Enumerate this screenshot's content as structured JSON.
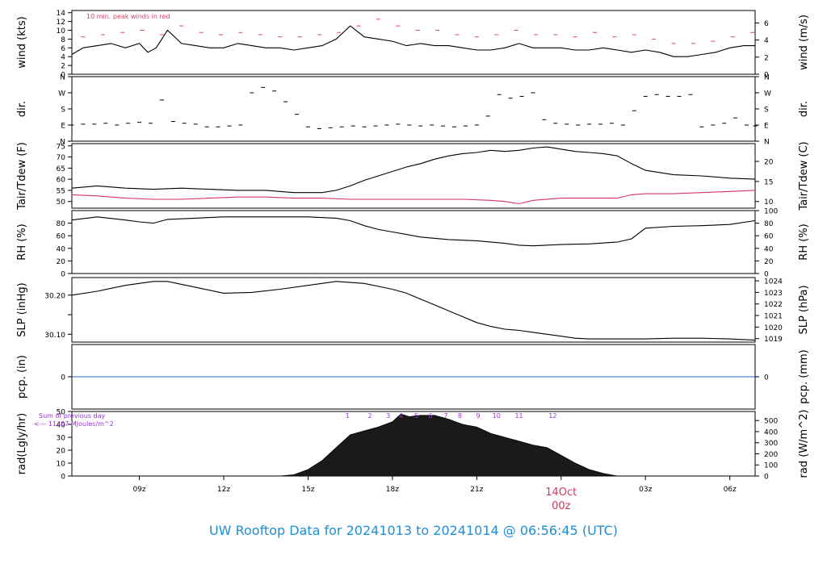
{
  "title": "UW Rooftop Data for 20241013  to  20241014 @ 06:56:45  (UTC)",
  "colors": {
    "line": "#000000",
    "peak": "#e0406a",
    "dewpoint": "#d6336c",
    "precip": "#2f5fd0",
    "annotation": "#9b30d9",
    "date_label": "#d0395e",
    "title": "#1e8fd6"
  },
  "x_axis": {
    "range_hours": [
      6.6,
      30.9
    ],
    "ticks": [
      {
        "h": 9,
        "label": "09z"
      },
      {
        "h": 12,
        "label": "12z"
      },
      {
        "h": 15,
        "label": "15z"
      },
      {
        "h": 18,
        "label": "18z"
      },
      {
        "h": 21,
        "label": "21z"
      },
      {
        "h": 24,
        "label": ""
      },
      {
        "h": 27,
        "label": "03z"
      },
      {
        "h": 30,
        "label": "06z"
      }
    ],
    "date_marker": {
      "h": 24,
      "date": "14Oct",
      "time": "00z"
    }
  },
  "chart_data": [
    {
      "id": "wind",
      "type": "line",
      "ylabel_left": "wind (kts)",
      "ylabel_right": "wind (m/s)",
      "ylim": [
        0,
        14.5
      ],
      "left_ticks": [
        0,
        2,
        4,
        6,
        8,
        10,
        12,
        14
      ],
      "right_ticks": [
        {
          "v": 0,
          "label": "0"
        },
        {
          "v": 3.888,
          "label": "2"
        },
        {
          "v": 7.775,
          "label": "4"
        },
        {
          "v": 11.663,
          "label": "6"
        }
      ],
      "annotation": "10 min. peak winds in red",
      "series": [
        {
          "role": "speed",
          "kind": "line",
          "x": [
            6.6,
            7.0,
            7.5,
            8.0,
            8.5,
            9.0,
            9.3,
            9.6,
            10.0,
            10.5,
            11.0,
            11.5,
            12.0,
            12.5,
            13.0,
            13.5,
            14.0,
            14.5,
            15.0,
            15.5,
            16.0,
            16.5,
            17.0,
            17.5,
            18.0,
            18.5,
            19.0,
            19.5,
            20.0,
            20.5,
            21.0,
            21.5,
            22.0,
            22.5,
            23.0,
            23.5,
            24.0,
            24.5,
            25.0,
            25.5,
            26.0,
            26.5,
            27.0,
            27.5,
            28.0,
            28.5,
            29.0,
            29.5,
            30.0,
            30.5,
            30.9
          ],
          "y": [
            4.5,
            6,
            6.5,
            7,
            6,
            7,
            5,
            6,
            10,
            7,
            6.5,
            6,
            6,
            7,
            6.5,
            6,
            6,
            5.5,
            6,
            6.5,
            8,
            11,
            8.5,
            8,
            7.5,
            6.5,
            7,
            6.5,
            6.5,
            6,
            5.5,
            5.5,
            6,
            7,
            6,
            6,
            6,
            5.5,
            5.5,
            6,
            5.5,
            5,
            5.5,
            5,
            4,
            4,
            4.5,
            5,
            6,
            6.5,
            6.5
          ]
        },
        {
          "role": "peak",
          "kind": "points",
          "x": [
            7.0,
            7.7,
            8.4,
            9.1,
            9.8,
            10.5,
            11.2,
            11.9,
            12.6,
            13.3,
            14.0,
            14.7,
            15.4,
            16.1,
            16.8,
            17.5,
            18.2,
            18.9,
            19.6,
            20.3,
            21.0,
            21.7,
            22.4,
            23.1,
            23.8,
            24.5,
            25.2,
            25.9,
            26.6,
            27.3,
            28.0,
            28.7,
            29.4,
            30.1,
            30.8
          ],
          "y": [
            8.5,
            9,
            9.5,
            10,
            9,
            11,
            9.5,
            9,
            9.5,
            9,
            8.5,
            8.5,
            9,
            9.5,
            11,
            12.5,
            11,
            10,
            10,
            9,
            8.5,
            9,
            10,
            9,
            9,
            8.5,
            9.5,
            8.5,
            9,
            8,
            7,
            7,
            7.5,
            8.5,
            9.5
          ]
        }
      ]
    },
    {
      "id": "dir",
      "type": "scatter",
      "ylabel_left": "dir.",
      "ylabel_right": "dir.",
      "ylim": [
        0,
        360
      ],
      "left_ticks": [
        {
          "v": 0,
          "label": "N"
        },
        {
          "v": 90,
          "label": "E"
        },
        {
          "v": 180,
          "label": "S"
        },
        {
          "v": 270,
          "label": "W"
        },
        {
          "v": 360,
          "label": "N"
        }
      ],
      "right_ticks": [
        {
          "v": 0,
          "label": "N"
        },
        {
          "v": 90,
          "label": "E"
        },
        {
          "v": 180,
          "label": "S"
        },
        {
          "v": 270,
          "label": "W"
        },
        {
          "v": 360,
          "label": "N"
        }
      ],
      "series": [
        {
          "role": "direction",
          "kind": "points",
          "x": [
            6.6,
            7.0,
            7.4,
            7.8,
            8.2,
            8.6,
            9.0,
            9.4,
            9.8,
            10.2,
            10.6,
            11.0,
            11.4,
            11.8,
            12.2,
            12.6,
            13.0,
            13.4,
            13.8,
            14.2,
            14.6,
            15.0,
            15.4,
            15.8,
            16.2,
            16.6,
            17.0,
            17.4,
            17.8,
            18.2,
            18.6,
            19.0,
            19.4,
            19.8,
            20.2,
            20.6,
            21.0,
            21.4,
            21.8,
            22.2,
            22.6,
            23.0,
            23.4,
            23.8,
            24.2,
            24.6,
            25.0,
            25.4,
            25.8,
            26.2,
            26.6,
            27.0,
            27.4,
            27.8,
            28.2,
            28.6,
            29.0,
            29.4,
            29.8,
            30.2,
            30.6,
            30.9
          ],
          "y": [
            90,
            95,
            95,
            100,
            90,
            100,
            105,
            100,
            230,
            110,
            100,
            95,
            80,
            80,
            85,
            90,
            270,
            300,
            280,
            220,
            150,
            80,
            70,
            75,
            80,
            85,
            80,
            85,
            90,
            95,
            90,
            85,
            90,
            85,
            80,
            85,
            90,
            140,
            260,
            240,
            250,
            270,
            120,
            100,
            95,
            90,
            95,
            95,
            100,
            90,
            170,
            250,
            260,
            250,
            250,
            260,
            80,
            90,
            100,
            130,
            90,
            85
          ]
        }
      ]
    },
    {
      "id": "temp",
      "type": "line",
      "ylabel_left": "Tair/Tdew (F)",
      "ylabel_right": "Tair/Tdew (C)",
      "ylim": [
        47,
        76
      ],
      "left_ticks": [
        50,
        55,
        60,
        65,
        70,
        75
      ],
      "right_ticks": [
        {
          "v": 50,
          "label": "10"
        },
        {
          "v": 59,
          "label": "15"
        },
        {
          "v": 68,
          "label": "20"
        }
      ],
      "series": [
        {
          "role": "air_temperature",
          "kind": "line",
          "x": [
            6.6,
            7.5,
            8.5,
            9.5,
            10.5,
            11.5,
            12.5,
            13.5,
            14.5,
            15.5,
            16.0,
            16.5,
            17.0,
            17.5,
            18.0,
            18.5,
            19.0,
            19.5,
            20.0,
            20.5,
            21.0,
            21.5,
            22.0,
            22.5,
            23.0,
            23.5,
            24.0,
            24.5,
            25.0,
            25.5,
            26.0,
            26.5,
            27.0,
            28.0,
            29.0,
            30.0,
            30.9
          ],
          "y": [
            56,
            57,
            56,
            55.5,
            56,
            55.5,
            55,
            55,
            54,
            54,
            55,
            57,
            59.5,
            61.5,
            63.5,
            65.5,
            67,
            69,
            70.5,
            71.5,
            72,
            73,
            72.5,
            73,
            74,
            74.5,
            73.5,
            72.5,
            72,
            71.5,
            70.5,
            67,
            64,
            62,
            61.5,
            60.5,
            60
          ]
        },
        {
          "role": "dewpoint",
          "kind": "line",
          "x": [
            6.6,
            7.5,
            8.5,
            9.5,
            10.5,
            11.5,
            12.5,
            13.5,
            14.5,
            15.5,
            16.5,
            17.5,
            18.5,
            19.5,
            20.5,
            21.5,
            22.0,
            22.5,
            23.0,
            24.0,
            25.0,
            26.0,
            26.5,
            27.0,
            28.0,
            29.0,
            30.0,
            30.9
          ],
          "y": [
            53,
            52.5,
            51.5,
            51,
            51,
            51.5,
            52,
            52,
            51.5,
            51.5,
            51,
            51,
            51,
            51,
            51,
            50.5,
            50,
            49,
            50.5,
            51.5,
            51.5,
            51.5,
            53,
            53.5,
            53.5,
            54,
            54.5,
            55
          ]
        }
      ]
    },
    {
      "id": "rh",
      "type": "line",
      "ylabel_left": "RH (%)",
      "ylabel_right": "RH (%)",
      "ylim": [
        0,
        100
      ],
      "left_ticks": [
        0,
        20,
        40,
        60,
        80
      ],
      "right_ticks": [
        {
          "v": 0,
          "label": "0"
        },
        {
          "v": 20,
          "label": "20"
        },
        {
          "v": 40,
          "label": "40"
        },
        {
          "v": 60,
          "label": "60"
        },
        {
          "v": 80,
          "label": "80"
        },
        {
          "v": 100,
          "label": "100"
        }
      ],
      "series": [
        {
          "role": "relative_humidity",
          "kind": "line",
          "x": [
            6.6,
            7.5,
            8.5,
            9.0,
            9.5,
            10.0,
            11.0,
            12.0,
            13.0,
            14.0,
            15.0,
            16.0,
            16.5,
            17.0,
            17.5,
            18.0,
            18.5,
            19.0,
            20.0,
            21.0,
            22.0,
            22.5,
            23.0,
            24.0,
            25.0,
            26.0,
            26.5,
            27.0,
            28.0,
            29.0,
            30.0,
            30.9
          ],
          "y": [
            85,
            90,
            85,
            82,
            80,
            86,
            88,
            90,
            90,
            90,
            90,
            88,
            84,
            76,
            70,
            66,
            62,
            58,
            54,
            52,
            48,
            45,
            44,
            46,
            47,
            50,
            55,
            72,
            75,
            76,
            78,
            84
          ]
        }
      ]
    },
    {
      "id": "slp",
      "type": "line",
      "ylabel_left": "SLP (inHg)",
      "ylabel_right": "SLP (hPa)",
      "ylim": [
        30.08,
        30.245
      ],
      "left_ticks": [
        {
          "v": 30.1,
          "label": "30.10"
        },
        {
          "v": 30.15,
          "label": ""
        },
        {
          "v": 30.2,
          "label": "30.20"
        }
      ],
      "right_ticks": [
        {
          "v": 30.0889,
          "label": "1019"
        },
        {
          "v": 30.1184,
          "label": "1020"
        },
        {
          "v": 30.148,
          "label": "1021"
        },
        {
          "v": 30.1775,
          "label": "1022"
        },
        {
          "v": 30.207,
          "label": "1023"
        },
        {
          "v": 30.2365,
          "label": "1024"
        }
      ],
      "series": [
        {
          "role": "pressure",
          "kind": "line",
          "x": [
            6.6,
            7.5,
            8.5,
            9.5,
            10.0,
            11.0,
            12.0,
            13.0,
            14.0,
            15.0,
            16.0,
            17.0,
            18.0,
            18.5,
            19.0,
            19.5,
            20.0,
            20.5,
            21.0,
            21.5,
            22.0,
            22.5,
            23.0,
            23.5,
            24.0,
            24.5,
            25.0,
            26.0,
            27.0,
            28.0,
            29.0,
            30.0,
            30.9
          ],
          "y": [
            30.2,
            30.21,
            30.225,
            30.235,
            30.235,
            30.22,
            30.205,
            30.207,
            30.215,
            30.225,
            30.235,
            30.23,
            30.215,
            30.205,
            30.19,
            30.175,
            30.16,
            30.145,
            30.13,
            30.12,
            30.113,
            30.11,
            30.105,
            30.1,
            30.095,
            30.09,
            30.088,
            30.088,
            30.088,
            30.09,
            30.09,
            30.088,
            30.085
          ]
        }
      ]
    },
    {
      "id": "pcp",
      "type": "line",
      "ylabel_left": "pcp. (in)",
      "ylabel_right": "pcp. (mm)",
      "ylim": [
        -1,
        1
      ],
      "left_ticks": [
        {
          "v": 0,
          "label": "0"
        }
      ],
      "right_ticks": [
        {
          "v": 0,
          "label": "0"
        }
      ],
      "series": [
        {
          "role": "precipitation",
          "kind": "line",
          "x": [
            6.6,
            30.9
          ],
          "y": [
            0,
            0
          ]
        }
      ]
    },
    {
      "id": "rad",
      "type": "area",
      "ylabel_left": "rad(Lgly/hr)",
      "ylabel_right": "rad (W/m^2)",
      "ylim": [
        0,
        50
      ],
      "left_ticks": [
        0,
        10,
        20,
        30,
        40,
        50
      ],
      "right_ticks": [
        {
          "v": 0,
          "label": "0"
        },
        {
          "v": 8.6,
          "label": "100"
        },
        {
          "v": 17.2,
          "label": "200"
        },
        {
          "v": 25.8,
          "label": "300"
        },
        {
          "v": 34.4,
          "label": "400"
        },
        {
          "v": 43.0,
          "label": "500"
        }
      ],
      "annotation_lines": [
        "Sum of previous day",
        "<--- 11407 MJoules/m^2"
      ],
      "hour_labels": [
        {
          "h": 16.4,
          "label": "1"
        },
        {
          "h": 17.2,
          "label": "2"
        },
        {
          "h": 17.85,
          "label": "3"
        },
        {
          "h": 18.3,
          "label": "4"
        },
        {
          "h": 18.85,
          "label": "5"
        },
        {
          "h": 19.35,
          "label": "6"
        },
        {
          "h": 19.9,
          "label": "7"
        },
        {
          "h": 20.4,
          "label": "8"
        },
        {
          "h": 21.05,
          "label": "9"
        },
        {
          "h": 21.7,
          "label": "10"
        },
        {
          "h": 22.5,
          "label": "11"
        },
        {
          "h": 23.7,
          "label": "12"
        }
      ],
      "series": [
        {
          "role": "radiation_envelope",
          "kind": "area",
          "x": [
            14.0,
            14.5,
            15.0,
            15.5,
            16.0,
            16.5,
            17.0,
            17.5,
            18.0,
            18.3,
            18.6,
            19.0,
            19.5,
            20.0,
            20.5,
            21.0,
            21.5,
            22.0,
            22.5,
            23.0,
            23.5,
            24.0,
            24.5,
            25.0,
            25.5,
            26.0
          ],
          "y": [
            0,
            1,
            5,
            12,
            22,
            32,
            35,
            38,
            42,
            48,
            46,
            47,
            47,
            44,
            40,
            38,
            33,
            30,
            27,
            24,
            22,
            16,
            10,
            5,
            2,
            0
          ]
        }
      ]
    }
  ]
}
